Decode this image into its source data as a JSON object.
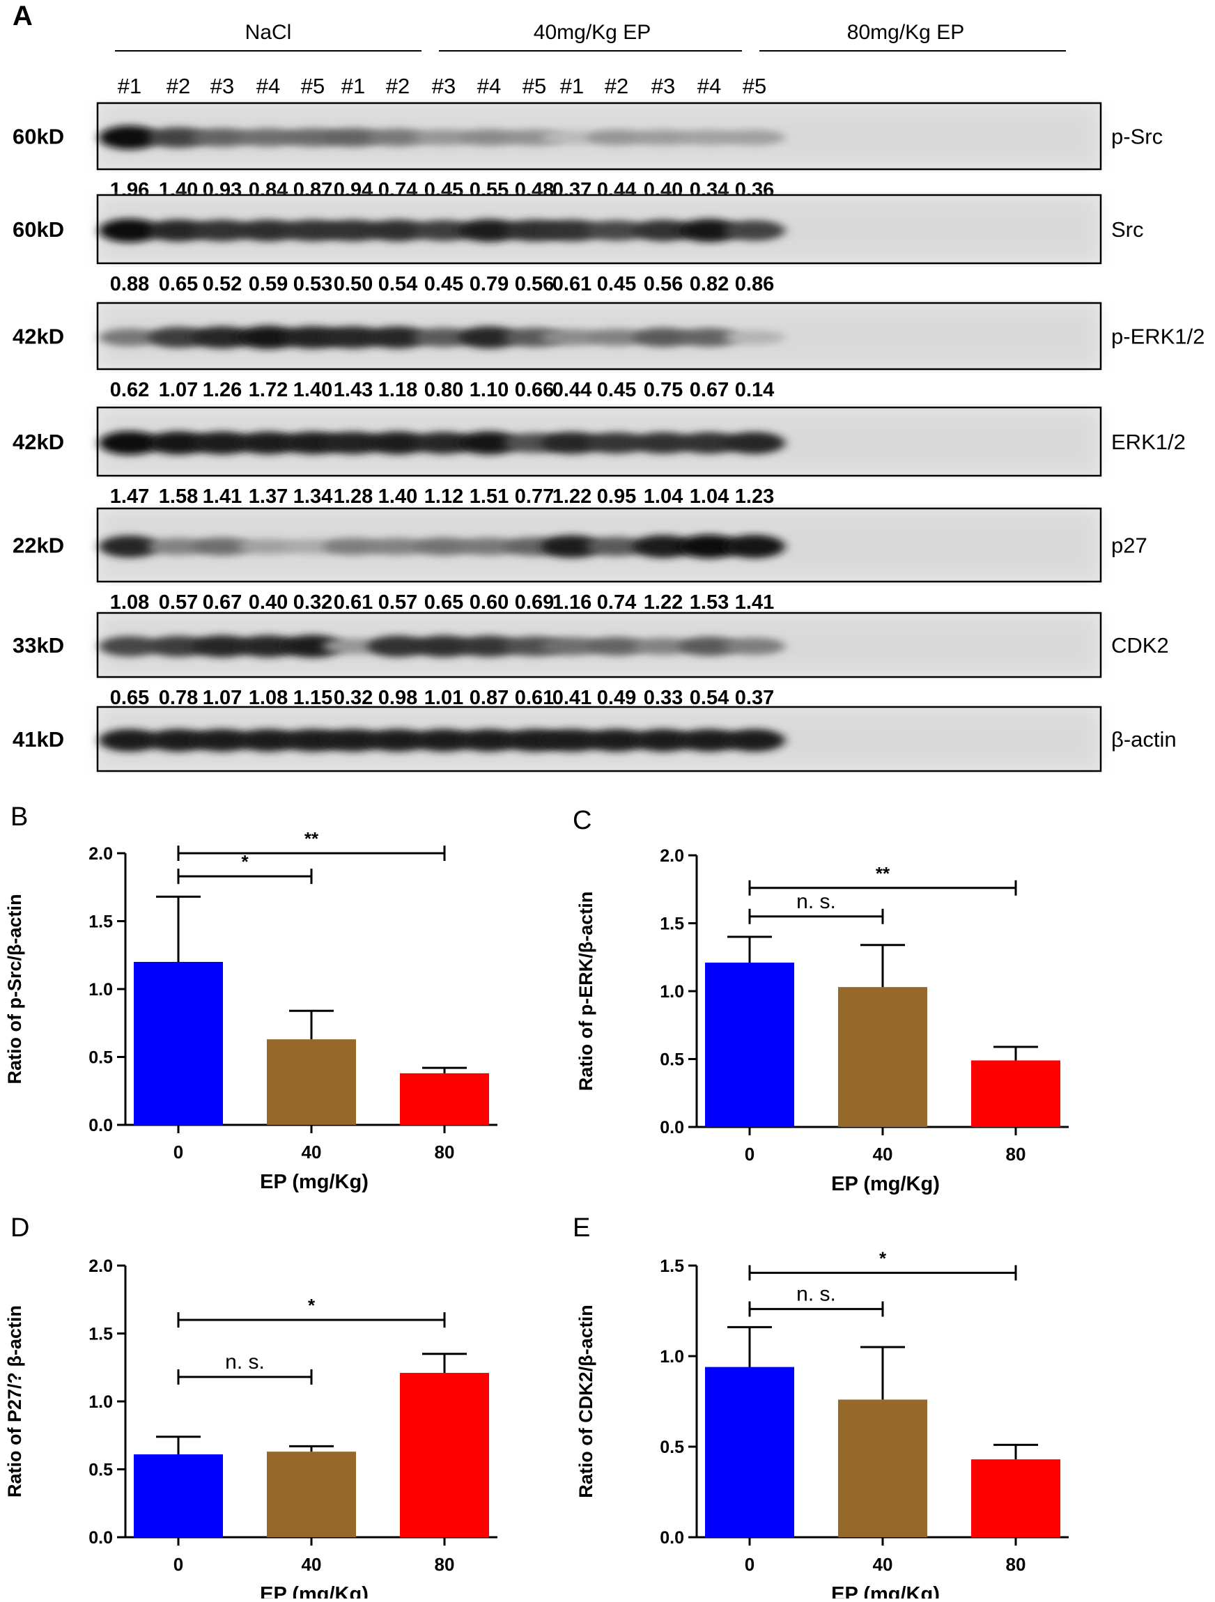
{
  "panel_letters": {
    "a": "A",
    "b": "B",
    "c": "C",
    "d": "D",
    "e": "E"
  },
  "groups": [
    "NaCl",
    "40mg/Kg EP",
    "80mg/Kg EP"
  ],
  "lanes": [
    "#1",
    "#2",
    "#3",
    "#4",
    "#5",
    "#1",
    "#2",
    "#3",
    "#4",
    "#5",
    "#1",
    "#2",
    "#3",
    "#4",
    "#5"
  ],
  "blots": [
    {
      "kd": "60kD",
      "protein": "p-Src",
      "values": [
        "1.96",
        "1.40",
        "0.93",
        "0.84",
        "0.87",
        "0.94",
        "0.74",
        "0.45",
        "0.55",
        "0.48",
        "0.37",
        "0.44",
        "0.40",
        "0.34",
        "0.36"
      ],
      "intensity": [
        1.0,
        0.72,
        0.55,
        0.5,
        0.52,
        0.55,
        0.45,
        0.3,
        0.36,
        0.32,
        0.12,
        0.3,
        0.27,
        0.24,
        0.25
      ]
    },
    {
      "kd": "60kD",
      "protein": "Src",
      "values": [
        "0.88",
        "0.65",
        "0.52",
        "0.59",
        "0.53",
        "0.50",
        "0.54",
        "0.45",
        "0.79",
        "0.56",
        "0.61",
        "0.45",
        "0.56",
        "0.82",
        "0.86"
      ],
      "intensity": [
        1.0,
        0.85,
        0.8,
        0.82,
        0.8,
        0.8,
        0.82,
        0.75,
        0.92,
        0.82,
        0.8,
        0.7,
        0.8,
        0.95,
        0.72
      ]
    },
    {
      "kd": "42kD",
      "protein": "p-ERK1/2",
      "values": [
        "0.62",
        "1.07",
        "1.26",
        "1.72",
        "1.40",
        "1.43",
        "1.18",
        "0.80",
        "1.10",
        "0.66",
        "0.44",
        "0.45",
        "0.75",
        "0.67",
        "0.14"
      ],
      "intensity": [
        0.45,
        0.75,
        0.85,
        0.95,
        0.88,
        0.85,
        0.85,
        0.6,
        0.85,
        0.6,
        0.35,
        0.4,
        0.6,
        0.55,
        0.15
      ]
    },
    {
      "kd": "42kD",
      "protein": "ERK1/2",
      "values": [
        "1.47",
        "1.58",
        "1.41",
        "1.37",
        "1.34",
        "1.28",
        "1.40",
        "1.12",
        "1.51",
        "0.77",
        "1.22",
        "0.95",
        "1.04",
        "1.04",
        "1.23"
      ],
      "intensity": [
        1.0,
        0.95,
        0.92,
        0.9,
        0.9,
        0.88,
        0.92,
        0.85,
        0.95,
        0.65,
        0.85,
        0.78,
        0.8,
        0.8,
        0.85
      ]
    },
    {
      "kd": "22kD",
      "protein": "p27",
      "values": [
        "1.08",
        "0.57",
        "0.67",
        "0.40",
        "0.32",
        "0.61",
        "0.57",
        "0.65",
        "0.60",
        "0.69",
        "1.16",
        "0.74",
        "1.22",
        "1.53",
        "1.41"
      ],
      "intensity": [
        0.85,
        0.4,
        0.5,
        0.25,
        0.2,
        0.42,
        0.4,
        0.48,
        0.45,
        0.55,
        0.9,
        0.6,
        0.92,
        1.0,
        0.95
      ]
    },
    {
      "kd": "33kD",
      "protein": "CDK2",
      "values": [
        "0.65",
        "0.78",
        "1.07",
        "1.08",
        "1.15",
        "0.32",
        "0.98",
        "1.01",
        "0.87",
        "0.61",
        "0.41",
        "0.49",
        "0.33",
        "0.54",
        "0.37"
      ],
      "intensity": [
        0.7,
        0.75,
        0.85,
        0.85,
        0.9,
        0.3,
        0.8,
        0.82,
        0.78,
        0.65,
        0.5,
        0.55,
        0.4,
        0.6,
        0.42
      ]
    },
    {
      "kd": "41kD",
      "protein": "β-actin",
      "values": [],
      "intensity": [
        0.9,
        0.9,
        0.9,
        0.9,
        0.9,
        0.9,
        0.9,
        0.9,
        0.9,
        0.9,
        0.9,
        0.9,
        0.9,
        0.9,
        0.9
      ]
    }
  ],
  "chart_data": [
    {
      "panel": "B",
      "type": "bar",
      "categories": [
        "0",
        "40",
        "80"
      ],
      "values": [
        1.2,
        0.63,
        0.38
      ],
      "errors": [
        0.48,
        0.21,
        0.04
      ],
      "colors": [
        "#0000ff",
        "#96682a",
        "#ff0000"
      ],
      "ylim": [
        0,
        2.0
      ],
      "yticks": [
        "0.0",
        "0.5",
        "1.0",
        "1.5",
        "2.0"
      ],
      "ylabel": "Ratio of p-Src/β-actin",
      "xlabel": "EP (mg/Kg)",
      "sig": [
        {
          "from": 0,
          "to": 1,
          "y": 1.83,
          "label": "*"
        },
        {
          "from": 0,
          "to": 2,
          "y": 2.0,
          "label": "**"
        }
      ]
    },
    {
      "panel": "C",
      "type": "bar",
      "categories": [
        "0",
        "40",
        "80"
      ],
      "values": [
        1.21,
        1.03,
        0.49
      ],
      "errors": [
        0.19,
        0.31,
        0.1
      ],
      "colors": [
        "#0000ff",
        "#96682a",
        "#ff0000"
      ],
      "ylim": [
        0,
        2.0
      ],
      "yticks": [
        "0.0",
        "0.5",
        "1.0",
        "1.5",
        "2.0"
      ],
      "ylabel": "Ratio of p-ERK/β-actin",
      "xlabel": "EP (mg/Kg)",
      "sig": [
        {
          "from": 0,
          "to": 1,
          "y": 1.55,
          "label": "n. s."
        },
        {
          "from": 0,
          "to": 2,
          "y": 1.76,
          "label": "**"
        }
      ]
    },
    {
      "panel": "D",
      "type": "bar",
      "categories": [
        "0",
        "40",
        "80"
      ],
      "values": [
        0.61,
        0.63,
        1.21
      ],
      "errors": [
        0.13,
        0.04,
        0.14
      ],
      "colors": [
        "#0000ff",
        "#96682a",
        "#ff0000"
      ],
      "ylim": [
        0,
        2.0
      ],
      "yticks": [
        "0.0",
        "0.5",
        "1.0",
        "1.5",
        "2.0"
      ],
      "ylabel": "Ratio of P27/?  β-actin",
      "xlabel": "EP (mg/Kg)",
      "sig": [
        {
          "from": 0,
          "to": 1,
          "y": 1.18,
          "label": "n. s."
        },
        {
          "from": 0,
          "to": 2,
          "y": 1.6,
          "label": "*"
        }
      ]
    },
    {
      "panel": "E",
      "type": "bar",
      "categories": [
        "0",
        "40",
        "80"
      ],
      "values": [
        0.94,
        0.76,
        0.43
      ],
      "errors": [
        0.22,
        0.29,
        0.08
      ],
      "colors": [
        "#0000ff",
        "#96682a",
        "#ff0000"
      ],
      "ylim": [
        0,
        1.5
      ],
      "yticks": [
        "0.0",
        "0.5",
        "1.0",
        "1.5"
      ],
      "ylabel": "Ratio of CDK2/β-actin",
      "xlabel": "EP (mg/Kg)",
      "sig": [
        {
          "from": 0,
          "to": 1,
          "y": 1.26,
          "label": "n. s."
        },
        {
          "from": 0,
          "to": 2,
          "y": 1.46,
          "label": "*"
        }
      ]
    }
  ]
}
